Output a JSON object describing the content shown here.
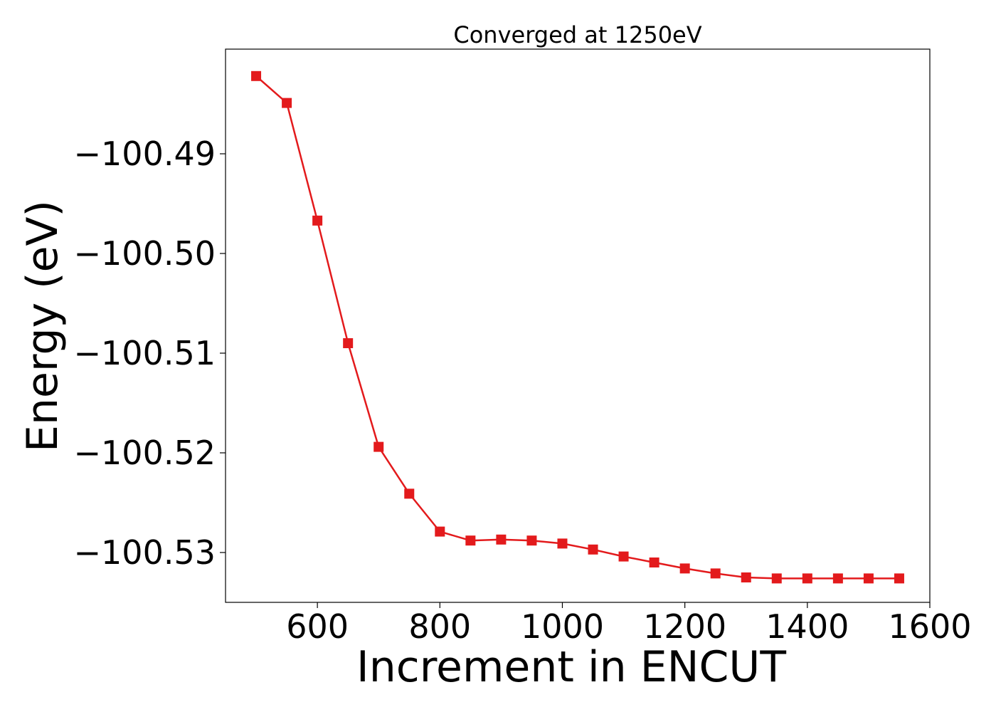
{
  "chart_data": {
    "type": "line",
    "title": "Converged at 1250eV",
    "xlabel": "Increment in ENCUT",
    "ylabel": "Energy (eV)",
    "xlim": [
      450,
      1600
    ],
    "ylim": [
      -100.535,
      -100.4795
    ],
    "x_ticks": [
      600,
      800,
      1000,
      1200,
      1400,
      1600
    ],
    "y_ticks": [
      -100.49,
      -100.5,
      -100.51,
      -100.52,
      -100.53
    ],
    "x_tick_labels": [
      "600",
      "800",
      "1000",
      "1200",
      "1400",
      "1600"
    ],
    "y_tick_labels": [
      "−100.49",
      "−100.50",
      "−100.51",
      "−100.52",
      "−100.53"
    ],
    "grid": false,
    "color": "#e31a1c",
    "marker": "square",
    "series": [
      {
        "x": [
          500,
          550,
          600,
          650,
          700,
          750,
          800,
          850,
          900,
          950,
          1000,
          1050,
          1100,
          1150,
          1200,
          1250,
          1300,
          1350,
          1400,
          1450,
          1500,
          1550
        ],
        "y": [
          -100.4822,
          -100.4849,
          -100.4967,
          -100.509,
          -100.5194,
          -100.5241,
          -100.5279,
          -100.5288,
          -100.5287,
          -100.5288,
          -100.5291,
          -100.5297,
          -100.5304,
          -100.531,
          -100.5316,
          -100.5321,
          -100.5325,
          -100.5326,
          -100.5326,
          -100.5326,
          -100.5326,
          -100.5326
        ]
      }
    ]
  }
}
